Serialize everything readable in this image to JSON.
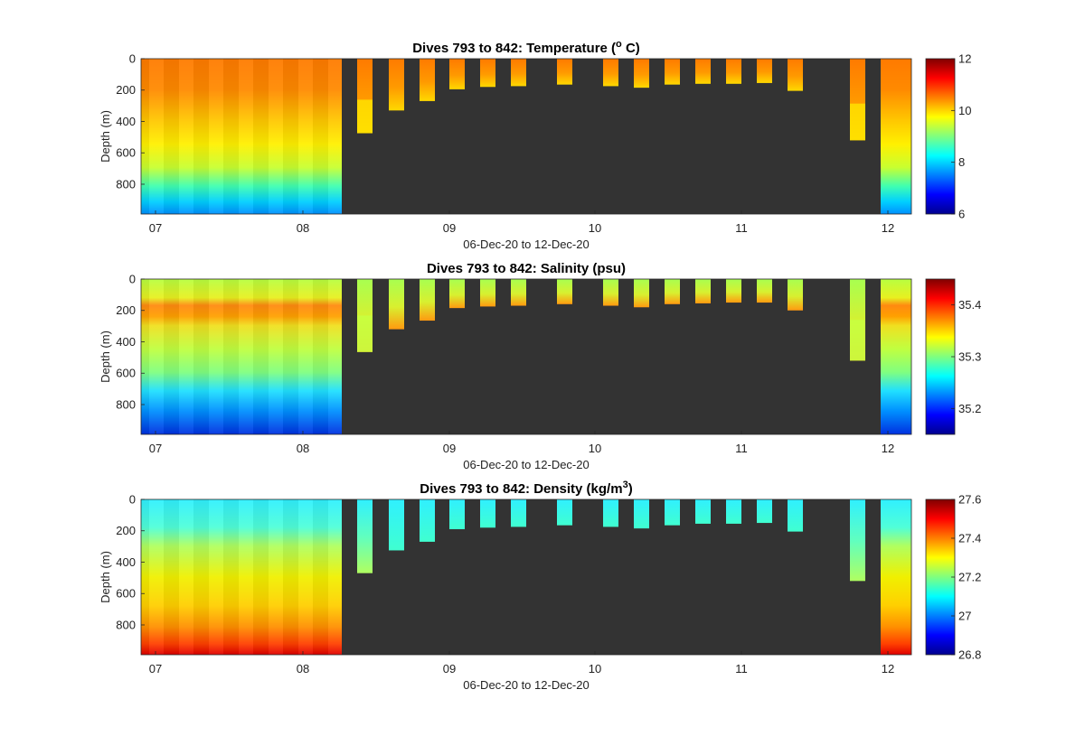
{
  "chart_data": [
    {
      "type": "heatmap",
      "title": "Dives 793 to 842: Temperature (",
      "title_sup": "o",
      "title_end": " C)",
      "ylabel": "Depth (m)",
      "xlabel": "06-Dec-20 to 12-Dec-20",
      "x_ticks": [
        "07",
        "08",
        "09",
        "10",
        "11",
        "12"
      ],
      "y_ticks": [
        "0",
        "200",
        "400",
        "600",
        "800"
      ],
      "ylim": [
        0,
        990
      ],
      "colorbar_ticks": [
        "12",
        "10",
        "8",
        "6"
      ],
      "clim": [
        6,
        12
      ],
      "colormap": "jet",
      "background": "#333333",
      "profile_max_depths": [
        475,
        330,
        270,
        195,
        180,
        175,
        165,
        175,
        185,
        165,
        160,
        160,
        155,
        205,
        520
      ],
      "continuous_block": {
        "x_start_day": 6.9,
        "x_end_day": 8.27,
        "max_depth": 990
      },
      "end_block": {
        "x_start_day": 11.95,
        "x_end_day": 12.15,
        "max_depth": 990
      }
    },
    {
      "type": "heatmap",
      "title": "Dives 793 to 842: Salinity (psu)",
      "ylabel": "Depth (m)",
      "xlabel": "06-Dec-20 to 12-Dec-20",
      "x_ticks": [
        "07",
        "08",
        "09",
        "10",
        "11",
        "12"
      ],
      "y_ticks": [
        "0",
        "200",
        "400",
        "600",
        "800"
      ],
      "ylim": [
        0,
        990
      ],
      "colorbar_ticks": [
        "35.4",
        "35.3",
        "35.2"
      ],
      "clim": [
        35.15,
        35.45
      ],
      "colormap": "jet",
      "background": "#333333",
      "profile_max_depths": [
        465,
        320,
        265,
        185,
        175,
        170,
        160,
        170,
        180,
        160,
        155,
        150,
        150,
        200,
        520
      ]
    },
    {
      "type": "heatmap",
      "title": "Dives 793 to 842: Density (kg/m",
      "title_sup": "3",
      "title_end": ")",
      "ylabel": "Depth (m)",
      "xlabel": "06-Dec-20 to 12-Dec-20",
      "x_ticks": [
        "07",
        "08",
        "09",
        "10",
        "11",
        "12"
      ],
      "y_ticks": [
        "0",
        "200",
        "400",
        "600",
        "800"
      ],
      "ylim": [
        0,
        990
      ],
      "colorbar_ticks": [
        "27.6",
        "27.4",
        "27.2",
        "27",
        "26.8"
      ],
      "clim": [
        26.8,
        27.6
      ],
      "colormap": "jet",
      "background": "#333333",
      "profile_max_depths": [
        470,
        325,
        270,
        190,
        180,
        175,
        165,
        175,
        185,
        165,
        155,
        155,
        150,
        205,
        520
      ]
    }
  ]
}
